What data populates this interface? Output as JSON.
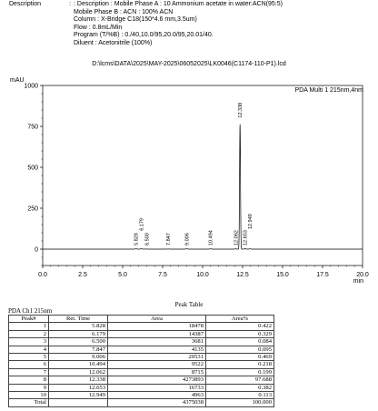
{
  "header": {
    "label": "Description",
    "colon": ":",
    "lines": [
      ": Description : Mobile Phase A : 10 Ammonium acetate in water:ACN(95:5)",
      "Mobile Phase B : ACN : 100% ACN",
      "Column : X-Bridge C18(150*4.6 mm,3.5um)",
      "Flow : 0.8mL/Min",
      "Program (T/%B) : 0./40,10.0/95,20.0/95,20.01/40.",
      "Diluent : Acetonitrile (100%)"
    ]
  },
  "file_path": "D:\\lcms\\DATA\\2025\\MAY-2025\\06052025\\LK0046(C1174-110-P1).lcd",
  "chart_data": {
    "type": "line",
    "ylabel": "mAU",
    "xlabel": "min",
    "xlim": [
      0.0,
      20.0
    ],
    "ylim": [
      -100,
      1000
    ],
    "x_ticks": [
      "0.0",
      "2.5",
      "5.0",
      "7.5",
      "10.0",
      "12.5",
      "15.0",
      "17.5",
      "20.0"
    ],
    "y_ticks": [
      "0",
      "250",
      "500",
      "750",
      "1000"
    ],
    "series": [
      {
        "name": "PDA Multi 1 215nm,4nm",
        "color": "#000000",
        "baseline": 0,
        "peaks": [
          {
            "rt": 5.828,
            "height": 3
          },
          {
            "rt": 6.179,
            "height": 3
          },
          {
            "rt": 6.5,
            "height": 1
          },
          {
            "rt": 7.847,
            "height": 1
          },
          {
            "rt": 9.006,
            "height": 3
          },
          {
            "rt": 10.494,
            "height": 2
          },
          {
            "rt": 12.062,
            "height": 2
          },
          {
            "rt": 12.338,
            "height": 765
          },
          {
            "rt": 12.653,
            "height": 4
          },
          {
            "rt": 12.949,
            "height": 2
          }
        ]
      }
    ],
    "peak_labels": [
      "5.828",
      "6.179",
      "6.500",
      "7.847",
      "9.006",
      "10.494",
      "12.062",
      "12.338",
      "12.653",
      "12.949"
    ],
    "peak_label_rt": [
      5.828,
      6.179,
      6.5,
      7.847,
      9.006,
      10.494,
      12.062,
      12.338,
      12.653,
      12.949
    ],
    "peak_label_anchor": [
      0,
      90,
      0,
      0,
      0,
      0,
      0,
      780,
      0,
      100
    ],
    "grid": false,
    "legend": "top-right"
  },
  "peak_table": {
    "title": "Peak Table",
    "channel": "PDA Ch1 215nm",
    "headers": [
      "Peak#",
      "Ret. Time",
      "Area",
      "Area%"
    ],
    "rows": [
      [
        "1",
        "5.828",
        "18478",
        "0.422"
      ],
      [
        "2",
        "6.179",
        "14387",
        "0.329"
      ],
      [
        "3",
        "6.500",
        "3681",
        "0.084"
      ],
      [
        "4",
        "7.847",
        "4135",
        "0.095"
      ],
      [
        "5",
        "9.006",
        "20531",
        "0.469"
      ],
      [
        "6",
        "10.494",
        "9522",
        "0.218"
      ],
      [
        "7",
        "12.062",
        "8715",
        "0.199"
      ],
      [
        "8",
        "12.338",
        "4273893",
        "97.688"
      ],
      [
        "9",
        "12.653",
        "16733",
        "0.382"
      ],
      [
        "10",
        "12.949",
        "4963",
        "0.113"
      ],
      [
        "Total",
        "",
        "4375038",
        "100.000"
      ]
    ]
  }
}
